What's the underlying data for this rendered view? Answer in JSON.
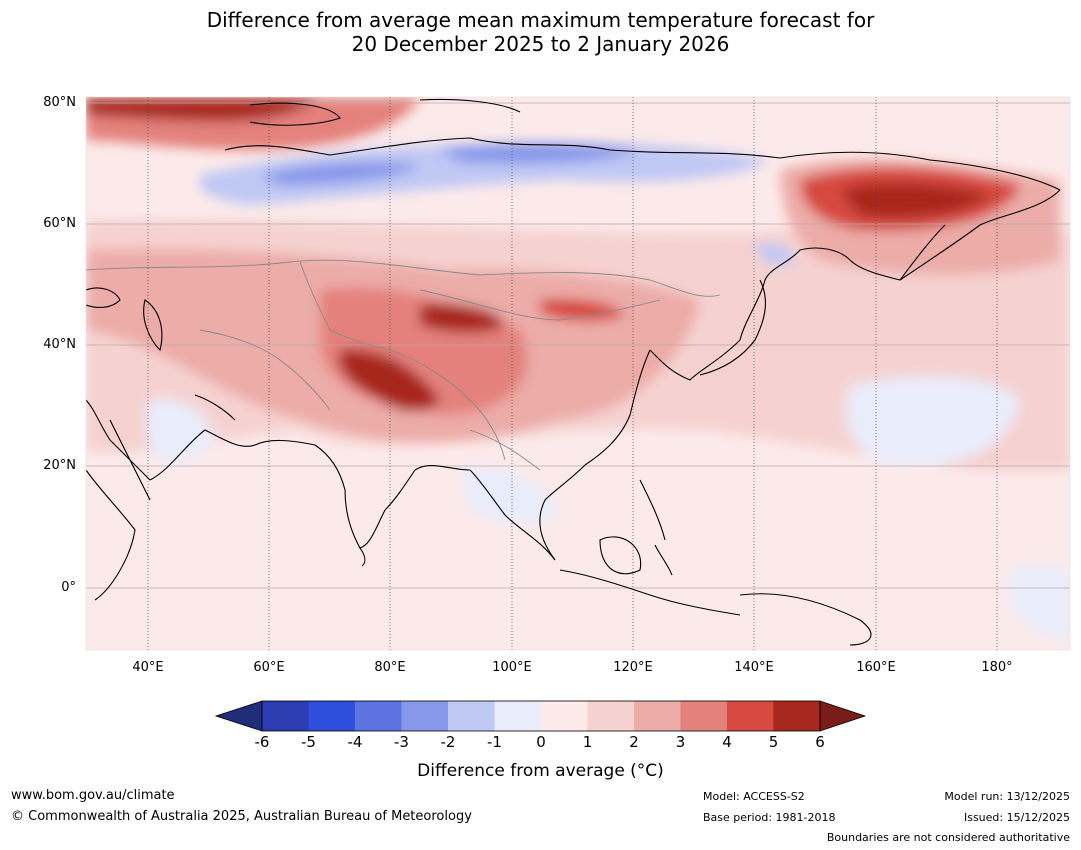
{
  "title_line1": "Difference from average mean maximum temperature forecast for",
  "title_line2": "20 December 2025 to 2 January 2026",
  "map": {
    "lat_labels": [
      "80°N",
      "60°N",
      "40°N",
      "20°N",
      "0°"
    ],
    "lon_labels": [
      "40°E",
      "60°E",
      "80°E",
      "100°E",
      "120°E",
      "140°E",
      "160°E",
      "180°"
    ],
    "region": "Asia"
  },
  "colorbar": {
    "ticks": [
      "-6",
      "-5",
      "-4",
      "-3",
      "-2",
      "-1",
      "0",
      "1",
      "2",
      "3",
      "4",
      "5",
      "6"
    ],
    "label": "Difference from average (°C)",
    "colors": [
      "#1f2d7a",
      "#2b3db0",
      "#2e4fdd",
      "#5c73e0",
      "#8797ea",
      "#c0c8f4",
      "#e9ecfb",
      "#fceaea",
      "#f5d2d0",
      "#ecaca8",
      "#e4817b",
      "#d64a41",
      "#a8271f",
      "#7a1c17"
    ]
  },
  "footer": {
    "website": "www.bom.gov.au/climate",
    "copyright": "© Commonwealth of Australia 2025, Australian Bureau of Meteorology",
    "model": "Model: ACCESS-S2",
    "base_period": "Base period: 1981-2018",
    "model_run": "Model run: 13/12/2025",
    "issued": "Issued: 15/12/2025",
    "disclaimer": "Boundaries are not considered authoritative"
  }
}
